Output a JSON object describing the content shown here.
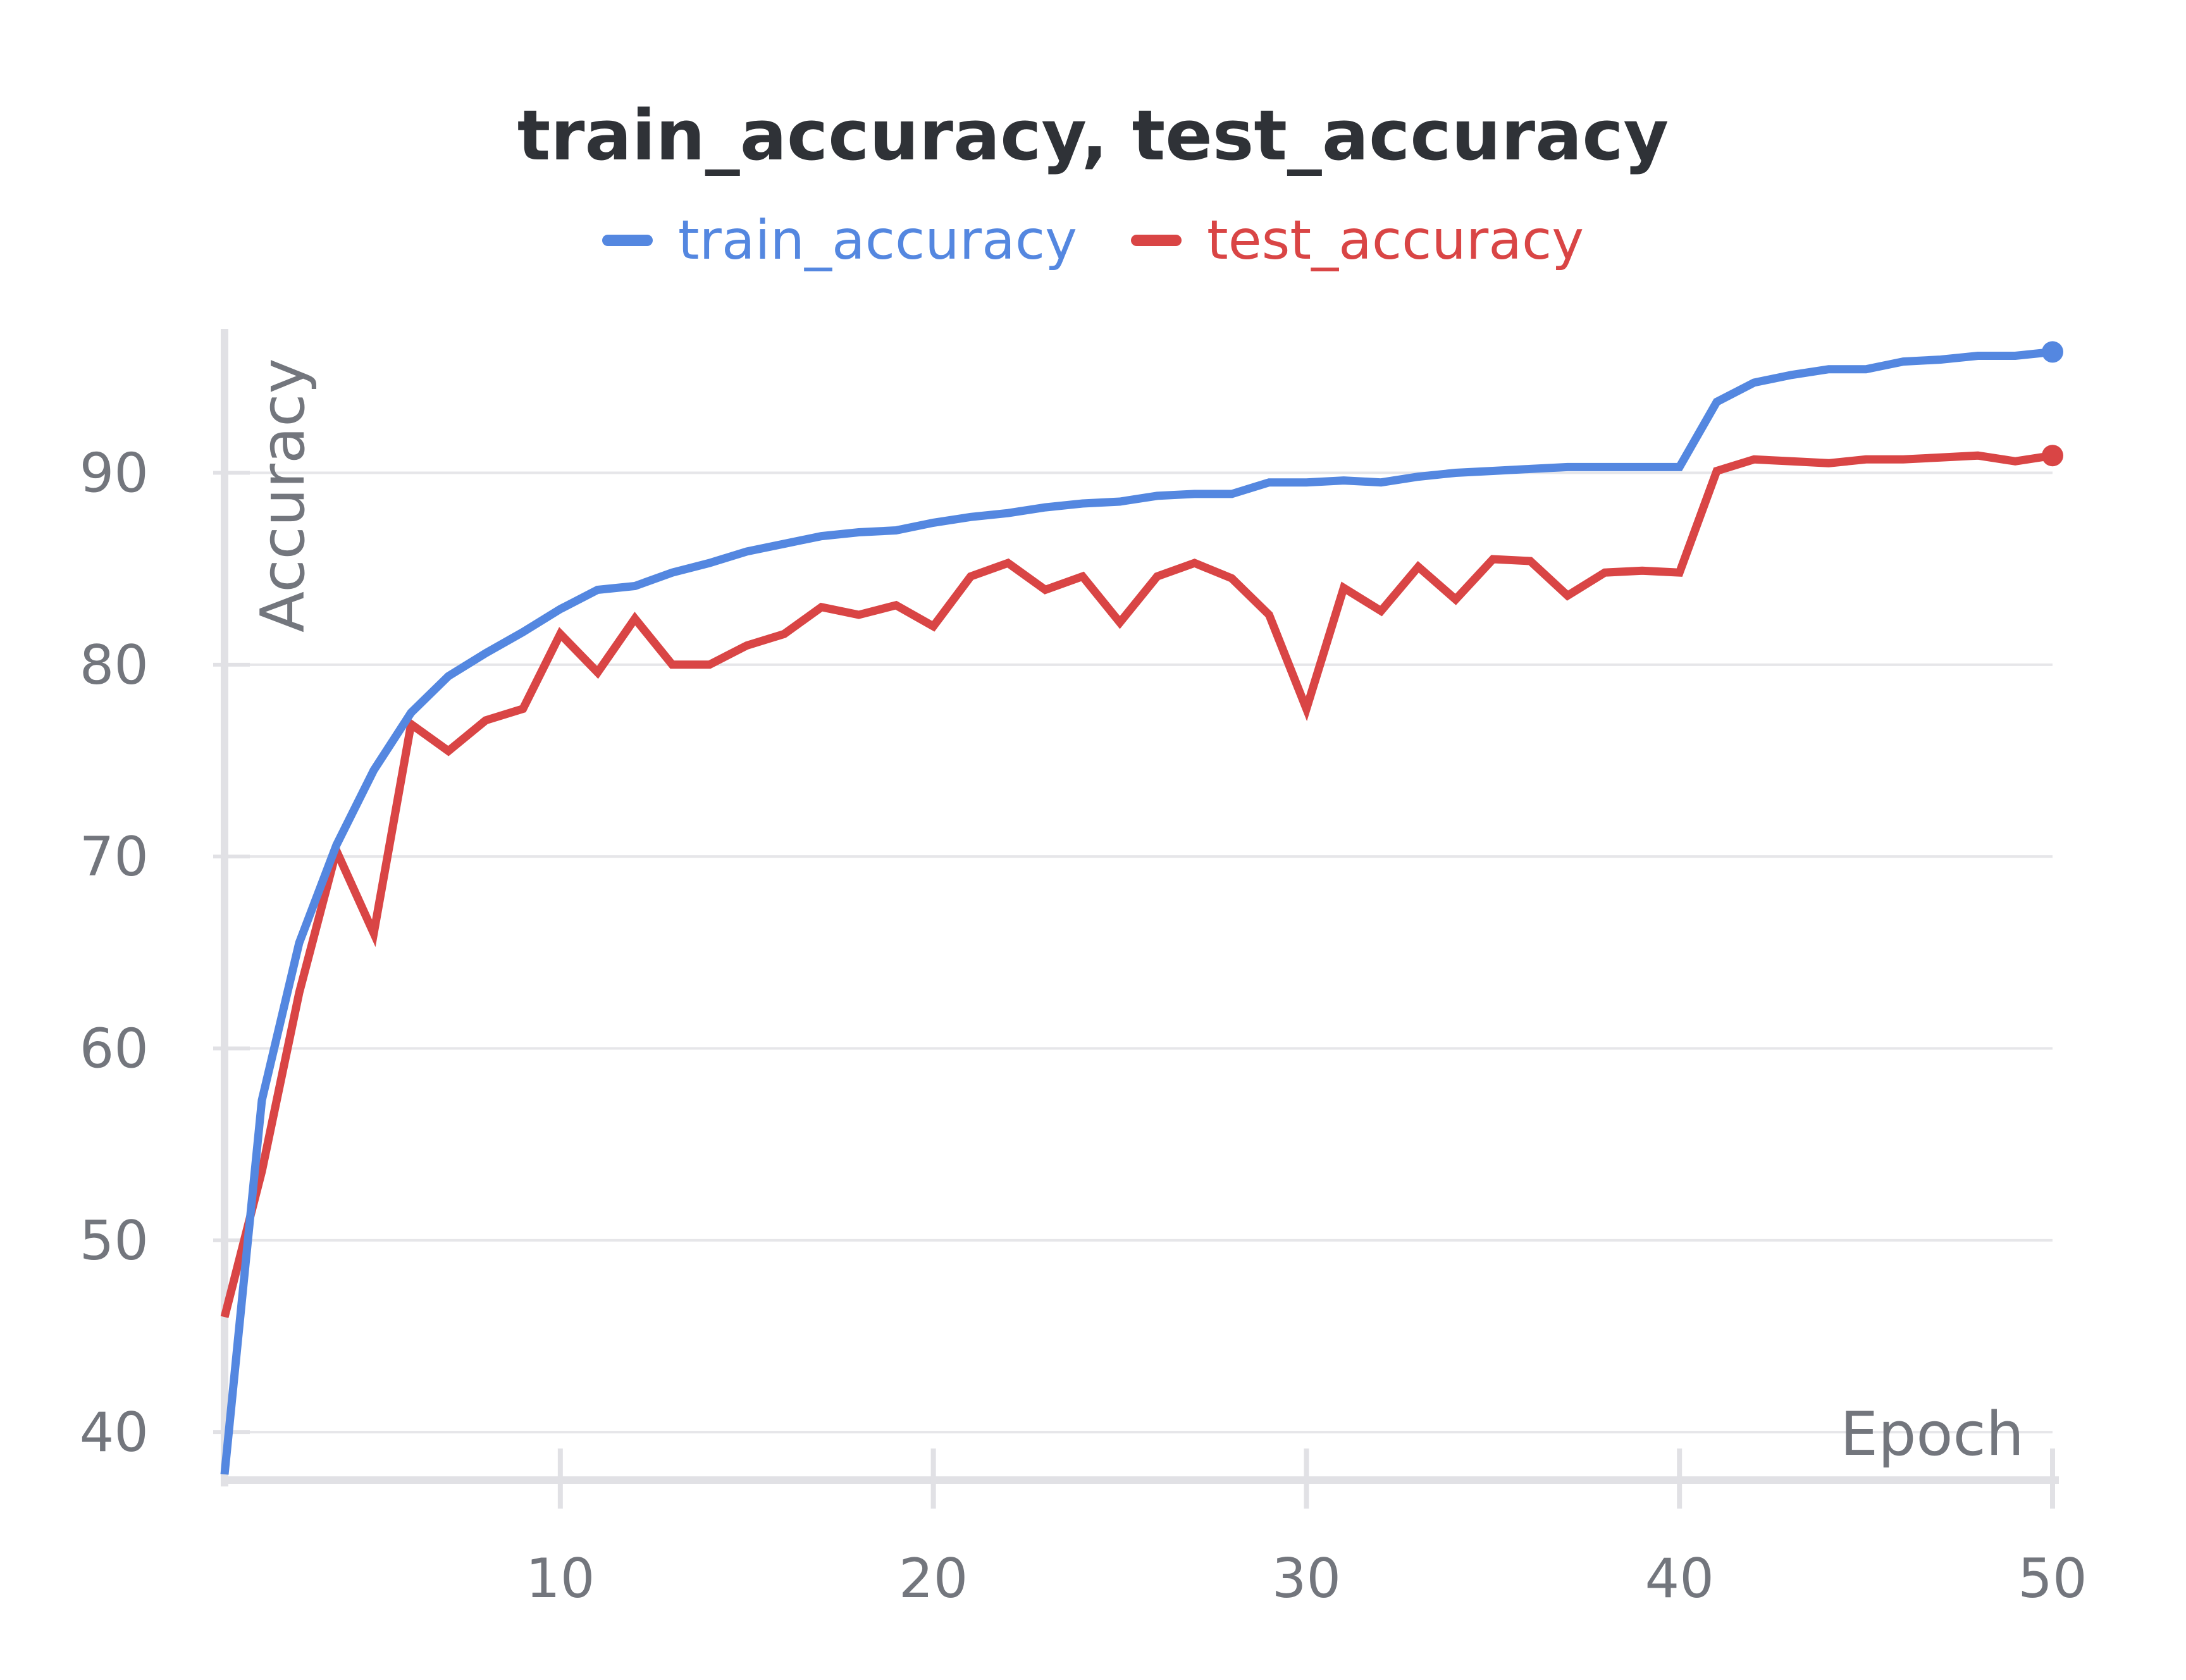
{
  "chart_data": {
    "type": "line",
    "title": "train_accuracy, test_accuracy",
    "xlabel": "Epoch",
    "ylabel": "Accuracy",
    "xlim": [
      1,
      50
    ],
    "ylim": [
      37.5,
      97.5
    ],
    "x_ticks": [
      10,
      20,
      30,
      40,
      50
    ],
    "y_ticks": [
      40,
      50,
      60,
      70,
      80,
      90
    ],
    "grid": true,
    "legend_position": "top-center",
    "x": [
      1,
      2,
      3,
      4,
      5,
      6,
      7,
      8,
      9,
      10,
      11,
      12,
      13,
      14,
      15,
      16,
      17,
      18,
      19,
      20,
      21,
      22,
      23,
      24,
      25,
      26,
      27,
      28,
      29,
      30,
      31,
      32,
      33,
      34,
      35,
      36,
      37,
      38,
      39,
      40,
      41,
      42,
      43,
      44,
      45,
      46,
      47,
      48,
      49,
      50
    ],
    "series": [
      {
        "name": "train_accuracy",
        "color": "#5487e0",
        "values": [
          37.8,
          57.3,
          65.5,
          70.6,
          74.5,
          77.5,
          79.4,
          80.6,
          81.7,
          82.9,
          83.9,
          84.1,
          84.8,
          85.3,
          85.9,
          86.3,
          86.7,
          86.9,
          87.0,
          87.4,
          87.7,
          87.9,
          88.2,
          88.4,
          88.5,
          88.8,
          88.9,
          88.9,
          89.5,
          89.5,
          89.6,
          89.5,
          89.8,
          90.0,
          90.1,
          90.2,
          90.3,
          90.3,
          90.3,
          90.3,
          93.7,
          94.7,
          95.1,
          95.4,
          95.4,
          95.8,
          95.9,
          96.1,
          96.1,
          96.3
        ]
      },
      {
        "name": "test_accuracy",
        "color": "#d94545",
        "values": [
          46.0,
          53.6,
          62.9,
          70.3,
          66.0,
          76.9,
          75.5,
          77.1,
          77.7,
          81.6,
          79.6,
          82.4,
          80.0,
          80.0,
          81.0,
          81.6,
          83.0,
          82.6,
          83.1,
          82.0,
          84.6,
          85.3,
          83.9,
          84.6,
          82.2,
          84.6,
          85.3,
          84.5,
          82.6,
          77.7,
          84.0,
          82.8,
          85.1,
          83.4,
          85.5,
          85.4,
          83.6,
          84.8,
          84.9,
          84.8,
          90.1,
          90.7,
          90.6,
          90.5,
          90.7,
          90.7,
          90.8,
          90.9,
          90.6,
          90.9
        ]
      }
    ]
  }
}
